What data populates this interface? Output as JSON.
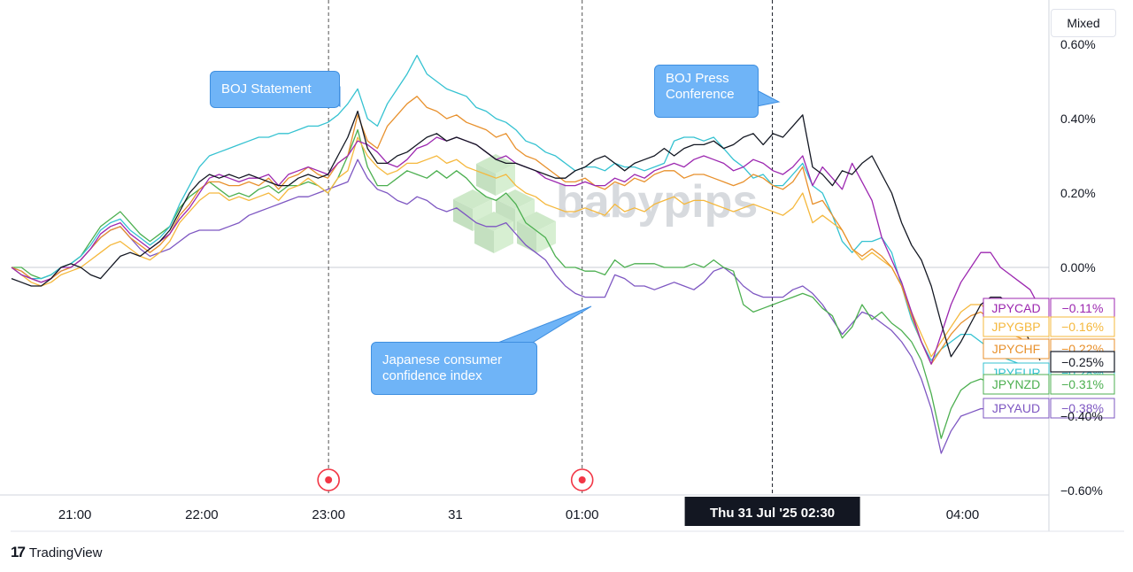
{
  "toolbar": {
    "mode_label": "Mixed"
  },
  "footer": {
    "brand": "TradingView",
    "brand_icon": "tradingview-logo-icon"
  },
  "watermark": {
    "text": "babypips",
    "icon": "babypips-cube-logo-icon"
  },
  "crosshair": {
    "label": "Thu 31 Jul '25   02:30"
  },
  "events": [
    {
      "label": "BOJ Statement",
      "time": "23:00",
      "marker_icon": "event-marker-icon"
    },
    {
      "label": "Japanese consumer confidence index",
      "time": "01:00",
      "marker_icon": "event-marker-icon"
    },
    {
      "label": "BOJ Press Conference",
      "time": "02:30"
    }
  ],
  "annotations": [
    {
      "lines": [
        "BOJ Statement"
      ]
    },
    {
      "lines": [
        "BOJ Press",
        "Conference"
      ]
    },
    {
      "lines": [
        "Japanese consumer",
        "confidence index"
      ]
    }
  ],
  "chart_data": {
    "type": "line",
    "x_ticks": [
      "21:00",
      "22:00",
      "23:00",
      "31",
      "01:00",
      "04:00"
    ],
    "y_ticks": [
      "0.60%",
      "0.40%",
      "0.20%",
      "0.00%",
      "−0.40%",
      "−0.60%"
    ],
    "ylim": [
      -0.6,
      0.6
    ],
    "y_unit": "%",
    "grid": false,
    "baseline": 0.0,
    "x_start": "20:30",
    "x_end": "04:40",
    "series": [
      {
        "name": "JPYCAD",
        "label": "−0.11%",
        "color": "#9c27b0",
        "values": [
          0,
          -0.02,
          -0.03,
          -0.04,
          -0.03,
          0,
          0,
          0.02,
          0.05,
          0.09,
          0.11,
          0.12,
          0.09,
          0.07,
          0.05,
          0.07,
          0.09,
          0.13,
          0.16,
          0.2,
          0.24,
          0.25,
          0.24,
          0.23,
          0.24,
          0.24,
          0.25,
          0.22,
          0.25,
          0.26,
          0.27,
          0.26,
          0.25,
          0.28,
          0.3,
          0.34,
          0.33,
          0.31,
          0.28,
          0.27,
          0.29,
          0.32,
          0.33,
          0.35,
          0.34,
          0.35,
          0.34,
          0.33,
          0.31,
          0.29,
          0.3,
          0.28,
          0.27,
          0.26,
          0.24,
          0.23,
          0.22,
          0.22,
          0.23,
          0.22,
          0.22,
          0.24,
          0.23,
          0.25,
          0.24,
          0.26,
          0.27,
          0.28,
          0.27,
          0.29,
          0.3,
          0.29,
          0.28,
          0.26,
          0.27,
          0.29,
          0.28,
          0.26,
          0.25,
          0.27,
          0.3,
          0.22,
          0.27,
          0.24,
          0.21,
          0.28,
          0.23,
          0.18,
          0.08,
          0.02,
          -0.04,
          -0.12,
          -0.2,
          -0.26,
          -0.18,
          -0.1,
          -0.04,
          0,
          0.04,
          0.04,
          0,
          -0.02,
          -0.04,
          -0.06,
          -0.11
        ]
      },
      {
        "name": "JPYGBP",
        "label": "−0.16%",
        "color": "#f5b83d",
        "values": [
          0,
          -0.02,
          -0.04,
          -0.05,
          -0.04,
          -0.02,
          -0.01,
          0,
          0.02,
          0.04,
          0.06,
          0.07,
          0.05,
          0.03,
          0.02,
          0.04,
          0.07,
          0.12,
          0.15,
          0.18,
          0.2,
          0.2,
          0.18,
          0.19,
          0.18,
          0.19,
          0.2,
          0.18,
          0.21,
          0.22,
          0.24,
          0.22,
          0.2,
          0.24,
          0.26,
          0.35,
          0.3,
          0.27,
          0.25,
          0.26,
          0.28,
          0.28,
          0.29,
          0.3,
          0.28,
          0.29,
          0.27,
          0.26,
          0.25,
          0.24,
          0.25,
          0.22,
          0.2,
          0.19,
          0.17,
          0.16,
          0.15,
          0.15,
          0.16,
          0.15,
          0.14,
          0.17,
          0.15,
          0.16,
          0.15,
          0.17,
          0.18,
          0.19,
          0.17,
          0.18,
          0.18,
          0.17,
          0.16,
          0.15,
          0.16,
          0.17,
          0.16,
          0.15,
          0.14,
          0.16,
          0.2,
          0.12,
          0.14,
          0.12,
          0.1,
          0.05,
          0.02,
          0.04,
          0.02,
          0,
          -0.05,
          -0.12,
          -0.18,
          -0.24,
          -0.2,
          -0.16,
          -0.12,
          -0.1,
          -0.1,
          -0.12,
          -0.13,
          -0.14,
          -0.15,
          -0.16,
          -0.16
        ]
      },
      {
        "name": "JPYCHF",
        "label": "−0.22%",
        "color": "#e8912d",
        "values": [
          0,
          -0.01,
          -0.03,
          -0.04,
          -0.03,
          -0.01,
          0,
          0.02,
          0.05,
          0.08,
          0.1,
          0.11,
          0.08,
          0.06,
          0.04,
          0.06,
          0.09,
          0.14,
          0.17,
          0.21,
          0.23,
          0.23,
          0.22,
          0.22,
          0.23,
          0.22,
          0.24,
          0.21,
          0.24,
          0.25,
          0.27,
          0.25,
          0.24,
          0.28,
          0.3,
          0.41,
          0.34,
          0.32,
          0.38,
          0.41,
          0.44,
          0.46,
          0.43,
          0.42,
          0.4,
          0.41,
          0.39,
          0.38,
          0.37,
          0.35,
          0.36,
          0.32,
          0.3,
          0.29,
          0.27,
          0.25,
          0.23,
          0.23,
          0.24,
          0.22,
          0.21,
          0.23,
          0.22,
          0.24,
          0.23,
          0.25,
          0.26,
          0.26,
          0.24,
          0.25,
          0.25,
          0.24,
          0.23,
          0.22,
          0.23,
          0.25,
          0.24,
          0.22,
          0.21,
          0.23,
          0.27,
          0.17,
          0.18,
          0.14,
          0.1,
          0.05,
          0.03,
          0.05,
          0.03,
          0,
          -0.05,
          -0.13,
          -0.2,
          -0.26,
          -0.22,
          -0.18,
          -0.15,
          -0.13,
          -0.12,
          -0.14,
          -0.16,
          -0.18,
          -0.19,
          -0.21,
          -0.22
        ]
      },
      {
        "name": "JPYEUR",
        "label": "−0.28%",
        "color": "#35c2d1",
        "values": [
          0,
          -0.02,
          -0.03,
          -0.03,
          -0.02,
          0,
          0.01,
          0.03,
          0.06,
          0.1,
          0.12,
          0.13,
          0.1,
          0.08,
          0.06,
          0.08,
          0.11,
          0.17,
          0.22,
          0.27,
          0.3,
          0.31,
          0.32,
          0.33,
          0.34,
          0.35,
          0.35,
          0.36,
          0.36,
          0.37,
          0.38,
          0.38,
          0.39,
          0.41,
          0.44,
          0.48,
          0.4,
          0.38,
          0.44,
          0.48,
          0.52,
          0.57,
          0.52,
          0.5,
          0.48,
          0.47,
          0.46,
          0.43,
          0.42,
          0.4,
          0.39,
          0.37,
          0.34,
          0.33,
          0.31,
          0.3,
          0.28,
          0.26,
          0.27,
          0.27,
          0.26,
          0.28,
          0.27,
          0.27,
          0.26,
          0.27,
          0.28,
          0.34,
          0.35,
          0.35,
          0.34,
          0.35,
          0.32,
          0.29,
          0.27,
          0.24,
          0.25,
          0.22,
          0.22,
          0.25,
          0.28,
          0.22,
          0.2,
          0.14,
          0.07,
          0.04,
          0.07,
          0.07,
          0.08,
          0.04,
          -0.05,
          -0.14,
          -0.2,
          -0.25,
          -0.22,
          -0.2,
          -0.18,
          -0.18,
          -0.2,
          -0.22,
          -0.24,
          -0.25,
          -0.26,
          -0.27,
          -0.28
        ]
      },
      {
        "name": "JPYNZD",
        "label": "−0.31%",
        "color": "#4caf50",
        "values": [
          0,
          0,
          -0.02,
          -0.03,
          -0.02,
          0,
          0.01,
          0.03,
          0.07,
          0.11,
          0.13,
          0.15,
          0.12,
          0.09,
          0.07,
          0.09,
          0.11,
          0.16,
          0.19,
          0.21,
          0.23,
          0.21,
          0.19,
          0.2,
          0.19,
          0.21,
          0.22,
          0.2,
          0.22,
          0.22,
          0.23,
          0.22,
          0.2,
          0.24,
          0.3,
          0.37,
          0.27,
          0.22,
          0.22,
          0.24,
          0.26,
          0.25,
          0.24,
          0.26,
          0.24,
          0.26,
          0.24,
          0.21,
          0.19,
          0.18,
          0.2,
          0.17,
          0.12,
          0.1,
          0.08,
          0.03,
          0,
          0,
          -0.01,
          -0.01,
          -0.02,
          0.02,
          0,
          0.01,
          0.01,
          0.01,
          0,
          0,
          0,
          0.01,
          0,
          0.02,
          0,
          -0.01,
          -0.1,
          -0.12,
          -0.11,
          -0.1,
          -0.09,
          -0.08,
          -0.07,
          -0.08,
          -0.11,
          -0.13,
          -0.19,
          -0.16,
          -0.1,
          -0.14,
          -0.12,
          -0.15,
          -0.17,
          -0.2,
          -0.25,
          -0.34,
          -0.46,
          -0.38,
          -0.33,
          -0.31,
          -0.3,
          -0.31,
          -0.31,
          -0.31,
          -0.31,
          -0.31,
          -0.31
        ]
      },
      {
        "name": "JPYAUD",
        "label": "−0.38%",
        "color": "#7e57c2",
        "values": [
          0,
          -0.01,
          -0.03,
          -0.04,
          -0.03,
          -0.01,
          0,
          0.02,
          0.05,
          0.08,
          0.1,
          0.11,
          0.08,
          0.05,
          0.03,
          0.04,
          0.05,
          0.07,
          0.09,
          0.1,
          0.1,
          0.1,
          0.11,
          0.12,
          0.14,
          0.15,
          0.16,
          0.17,
          0.18,
          0.19,
          0.19,
          0.2,
          0.21,
          0.22,
          0.23,
          0.29,
          0.24,
          0.21,
          0.2,
          0.18,
          0.17,
          0.19,
          0.18,
          0.16,
          0.15,
          0.16,
          0.14,
          0.12,
          0.11,
          0.11,
          0.12,
          0.09,
          0.06,
          0.04,
          0.02,
          -0.02,
          -0.05,
          -0.07,
          -0.08,
          -0.08,
          -0.08,
          -0.02,
          -0.03,
          -0.05,
          -0.05,
          -0.06,
          -0.05,
          -0.04,
          -0.05,
          -0.06,
          -0.04,
          -0.01,
          0,
          -0.02,
          -0.05,
          -0.07,
          -0.08,
          -0.08,
          -0.08,
          -0.06,
          -0.05,
          -0.07,
          -0.1,
          -0.14,
          -0.18,
          -0.15,
          -0.12,
          -0.13,
          -0.15,
          -0.17,
          -0.2,
          -0.24,
          -0.3,
          -0.38,
          -0.5,
          -0.44,
          -0.4,
          -0.39,
          -0.38,
          -0.38,
          -0.38,
          -0.38,
          -0.38,
          -0.38,
          -0.38
        ]
      },
      {
        "name": "",
        "label": "−0.25%",
        "color": "#131722",
        "values": [
          -0.03,
          -0.04,
          -0.05,
          -0.05,
          -0.03,
          0,
          0.01,
          0,
          -0.02,
          -0.03,
          0,
          0.03,
          0.04,
          0.03,
          0.05,
          0.07,
          0.1,
          0.15,
          0.2,
          0.23,
          0.25,
          0.24,
          0.25,
          0.24,
          0.25,
          0.24,
          0.23,
          0.22,
          0.22,
          0.24,
          0.25,
          0.24,
          0.25,
          0.3,
          0.35,
          0.42,
          0.32,
          0.28,
          0.28,
          0.3,
          0.31,
          0.33,
          0.35,
          0.36,
          0.34,
          0.35,
          0.34,
          0.33,
          0.31,
          0.29,
          0.28,
          0.28,
          0.27,
          0.26,
          0.25,
          0.24,
          0.24,
          0.26,
          0.27,
          0.29,
          0.3,
          0.28,
          0.26,
          0.28,
          0.29,
          0.3,
          0.32,
          0.3,
          0.32,
          0.33,
          0.33,
          0.34,
          0.32,
          0.33,
          0.35,
          0.36,
          0.33,
          0.36,
          0.35,
          0.38,
          0.41,
          0.27,
          0.25,
          0.22,
          0.26,
          0.25,
          0.28,
          0.3,
          0.25,
          0.2,
          0.12,
          0.06,
          0.02,
          -0.05,
          -0.15,
          -0.24,
          -0.2,
          -0.15,
          -0.1,
          -0.08,
          -0.08,
          -0.1,
          -0.15,
          -0.2,
          -0.25
        ]
      }
    ]
  }
}
